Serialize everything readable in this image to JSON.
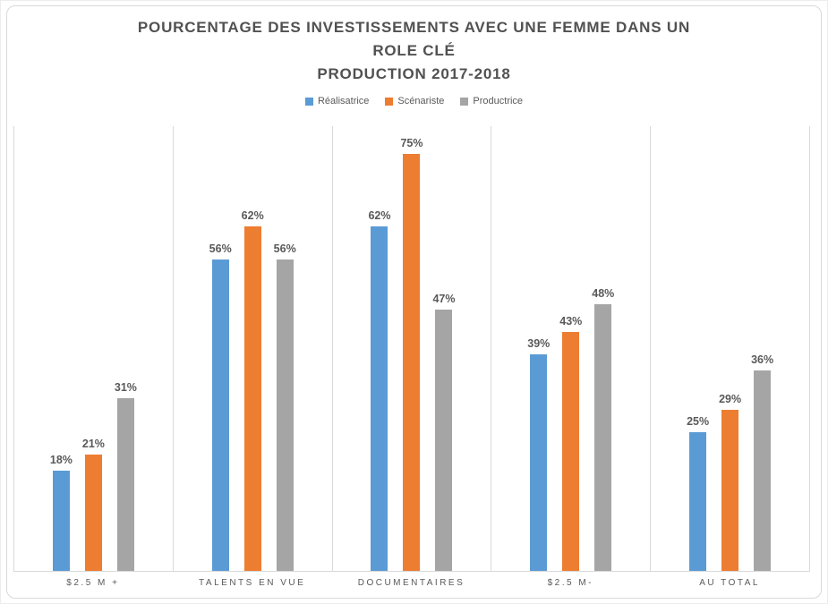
{
  "chart_data": {
    "type": "bar",
    "title": "POURCENTAGE DES INVESTISSEMENTS AVEC UNE FEMME DANS UN ROLE CLÉ PRODUCTION 2017-2018",
    "title_lines": [
      "POURCENTAGE DES INVESTISSEMENTS AVEC UNE FEMME DANS UN",
      "ROLE CLÉ",
      "PRODUCTION 2017-2018"
    ],
    "categories": [
      "$2.5 M +",
      "TALENTS EN VUE",
      "DOCUMENTAIRES",
      "$2.5 M-",
      "AU TOTAL"
    ],
    "series": [
      {
        "name": "Réalisatrice",
        "color": "#5B9BD5",
        "values": [
          18,
          56,
          62,
          39,
          25
        ]
      },
      {
        "name": "Scénariste",
        "color": "#ED7D31",
        "values": [
          21,
          62,
          75,
          43,
          29
        ]
      },
      {
        "name": "Productrice",
        "color": "#A5A5A5",
        "values": [
          31,
          56,
          47,
          48,
          36
        ]
      }
    ],
    "value_suffix": "%",
    "ylim": [
      0,
      80
    ],
    "xlabel": "",
    "ylabel": "",
    "grid": "vertical category separators only, no horizontal gridlines, no y-axis tick labels",
    "legend_position": "top",
    "data_labels": true,
    "gridline_color": "#d9d9d9",
    "text_color": "#595959"
  }
}
